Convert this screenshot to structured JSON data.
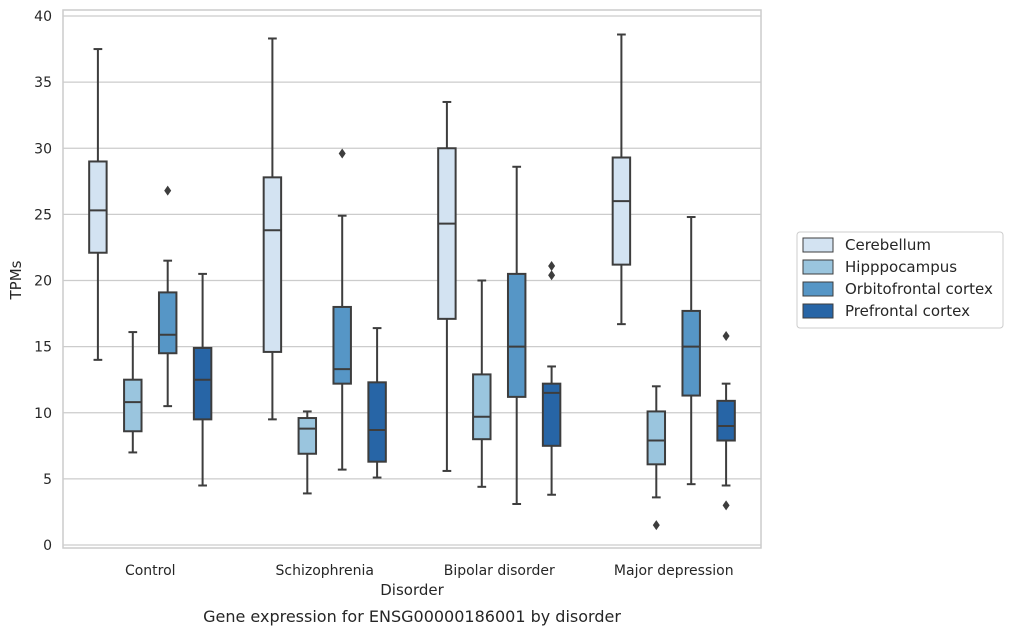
{
  "caption": "Gene expression for ENSG00000186001 by disorder",
  "chart_data": {
    "type": "box",
    "xlabel": "Disorder",
    "ylabel": "TPMs",
    "ylim": [
      0,
      40
    ],
    "yticks": [
      0,
      5,
      10,
      15,
      20,
      25,
      30,
      35,
      40
    ],
    "grid": "horizontal",
    "legend_position": "right",
    "categories": [
      "Control",
      "Schizophrenia",
      "Bipolar disorder",
      "Major depression"
    ],
    "series": [
      {
        "name": "Cerebellum",
        "color": "#d3e3f2",
        "boxes": [
          {
            "whisker_low": 14.0,
            "q1": 22.1,
            "median": 25.3,
            "q3": 29.0,
            "whisker_high": 37.5,
            "outliers": []
          },
          {
            "whisker_low": 9.5,
            "q1": 14.6,
            "median": 23.8,
            "q3": 27.8,
            "whisker_high": 38.3,
            "outliers": []
          },
          {
            "whisker_low": 5.6,
            "q1": 17.1,
            "median": 24.3,
            "q3": 30.0,
            "whisker_high": 33.5,
            "outliers": []
          },
          {
            "whisker_low": 16.7,
            "q1": 21.2,
            "median": 26.0,
            "q3": 29.3,
            "whisker_high": 38.6,
            "outliers": []
          }
        ]
      },
      {
        "name": "Hipppocampus",
        "color": "#9ac5de",
        "boxes": [
          {
            "whisker_low": 7.0,
            "q1": 8.6,
            "median": 10.8,
            "q3": 12.5,
            "whisker_high": 16.1,
            "outliers": []
          },
          {
            "whisker_low": 3.9,
            "q1": 6.9,
            "median": 8.8,
            "q3": 9.6,
            "whisker_high": 10.1,
            "outliers": []
          },
          {
            "whisker_low": 4.4,
            "q1": 8.0,
            "median": 9.7,
            "q3": 12.9,
            "whisker_high": 20.0,
            "outliers": []
          },
          {
            "whisker_low": 3.6,
            "q1": 6.1,
            "median": 7.9,
            "q3": 10.1,
            "whisker_high": 12.0,
            "outliers": [
              1.5
            ]
          }
        ]
      },
      {
        "name": "Orbitofrontal cortex",
        "color": "#5696c6",
        "boxes": [
          {
            "whisker_low": 10.5,
            "q1": 14.5,
            "median": 15.9,
            "q3": 19.1,
            "whisker_high": 21.5,
            "outliers": [
              26.8
            ]
          },
          {
            "whisker_low": 5.7,
            "q1": 12.2,
            "median": 13.3,
            "q3": 18.0,
            "whisker_high": 24.9,
            "outliers": [
              29.6
            ]
          },
          {
            "whisker_low": 3.1,
            "q1": 11.2,
            "median": 15.0,
            "q3": 20.5,
            "whisker_high": 28.6,
            "outliers": []
          },
          {
            "whisker_low": 4.6,
            "q1": 11.3,
            "median": 15.0,
            "q3": 17.7,
            "whisker_high": 24.8,
            "outliers": []
          }
        ]
      },
      {
        "name": "Prefrontal cortex",
        "color": "#2765a6",
        "boxes": [
          {
            "whisker_low": 4.5,
            "q1": 9.5,
            "median": 12.5,
            "q3": 14.9,
            "whisker_high": 20.5,
            "outliers": []
          },
          {
            "whisker_low": 5.1,
            "q1": 6.3,
            "median": 8.7,
            "q3": 12.3,
            "whisker_high": 16.4,
            "outliers": []
          },
          {
            "whisker_low": 3.8,
            "q1": 7.5,
            "median": 11.5,
            "q3": 12.2,
            "whisker_high": 13.5,
            "outliers": [
              20.4,
              21.1
            ]
          },
          {
            "whisker_low": 4.5,
            "q1": 7.9,
            "median": 9.0,
            "q3": 10.9,
            "whisker_high": 12.2,
            "outliers": [
              3.0,
              15.8
            ]
          }
        ]
      }
    ]
  }
}
